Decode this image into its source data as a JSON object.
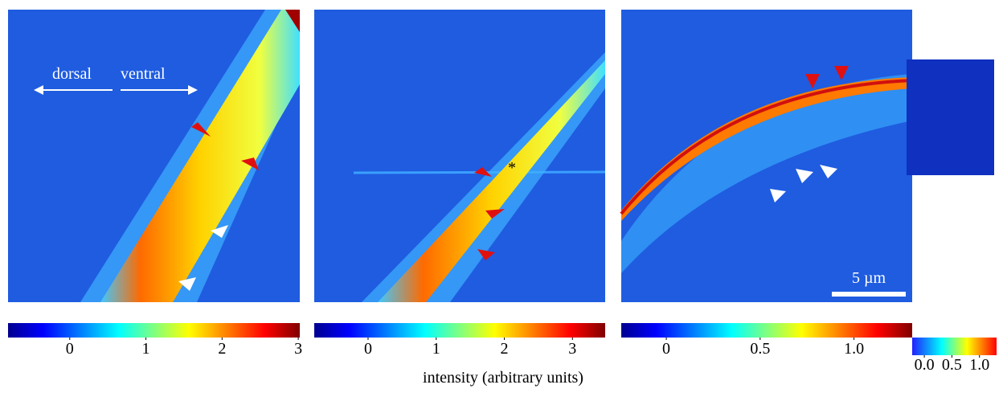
{
  "figure": {
    "labels": {
      "dorsal": "dorsal",
      "ventral": "ventral",
      "scale_bar": "5 µm",
      "axis_title": "intensity (arbitrary units)"
    },
    "colorbars": [
      {
        "range": [
          -0.81,
          3.02
        ],
        "ticks": [
          0,
          1,
          2,
          3
        ]
      },
      {
        "range": [
          -0.79,
          3.48
        ],
        "ticks": [
          0,
          1,
          2,
          3
        ]
      },
      {
        "range": [
          -0.24,
          1.31
        ],
        "ticks": [
          0,
          0.5,
          {
            "value": 1,
            "label": "1.0"
          }
        ]
      },
      {
        "range": [
          -0.22,
          1.31
        ],
        "ticks": [
          {
            "value": 0,
            "label": "0.0"
          },
          0.5,
          {
            "value": 1,
            "label": "1.0"
          }
        ]
      }
    ]
  }
}
